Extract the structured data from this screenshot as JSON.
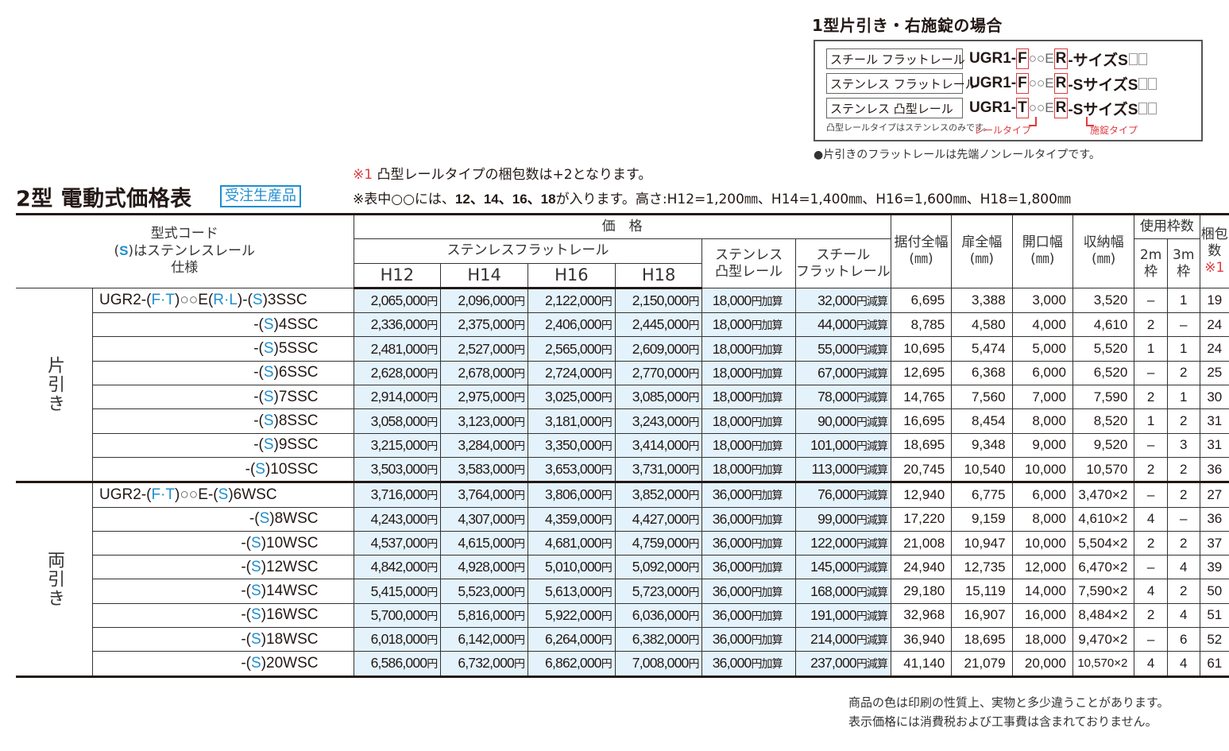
{
  "example": {
    "title": "1型片引き・右施錠の場合",
    "rows": [
      {
        "label": "スチール フラットレール",
        "prefix": "UGR1-",
        "rail": "F",
        "mid": "○○E",
        "lock": "R",
        "suffix": "-サイズS"
      },
      {
        "label": "ステンレス フラットレール",
        "prefix": "UGR1-",
        "rail": "F",
        "mid": "○○E",
        "lock": "R",
        "suffix": "-SサイズS"
      },
      {
        "label": "ステンレス 凸型レール",
        "prefix": "UGR1-",
        "rail": "T",
        "mid": "○○E",
        "lock": "R",
        "suffix": "-SサイズS"
      }
    ],
    "note": "凸型レールタイプはステンレスのみです。",
    "rail_type_label": "レールタイプ",
    "lock_type_label": "施錠タイプ",
    "bullet_note": "●片引きのフラットレールは先端ノンレールタイプです。"
  },
  "header": {
    "title": "2型 電動式価格表",
    "badge": "受注生産品",
    "note1_mark": "※1",
    "note1_text": " 凸型レールタイプの梱包数は+2となります。",
    "note2_pre": "※表中○○には、",
    "note2_bold": "12、14、16、18",
    "note2_post": "が入ります。高さ:H12=1,200㎜、H14=1,400㎜、H16=1,600㎜、H18=1,800㎜"
  },
  "table": {
    "head": {
      "model_l1": "型式コード",
      "model_s": "S",
      "model_l2": "はステンレスレール",
      "model_l3": "仕様",
      "price": "価　格",
      "stainless_flat": "ステンレスフラットレール",
      "heights": [
        "H12",
        "H14",
        "H16",
        "H18"
      ],
      "stainless_convex_l1": "ステンレス",
      "stainless_convex_l2": "凸型レール",
      "steel_flat_l1": "スチール",
      "steel_flat_l2": "フラットレール",
      "install_width_l1": "据付全幅",
      "door_width_l1": "扉全幅",
      "opening_width_l1": "開口幅",
      "storage_width_l1": "収納幅",
      "unit": "(㎜)",
      "frames": "使用枠数",
      "frame2_l1": "2m",
      "frame3_l1": "3m",
      "frame_l2": "枠",
      "pack_l1": "梱包",
      "pack_l2": "数",
      "pack_mark": "※1"
    },
    "yen": "円",
    "add": "円加算",
    "sub": "円減算",
    "groups": [
      {
        "name": "片引き",
        "rows": [
          {
            "model_prefix": "UGR2-(F·T)○○E(R·L)",
            "model": "3SSC",
            "h12": "2,065,000",
            "h14": "2,096,000",
            "h16": "2,122,000",
            "h18": "2,150,000",
            "convex": "18,000",
            "steel": "32,000",
            "install": "6,695",
            "door": "3,388",
            "opening": "3,000",
            "storage": "3,520",
            "f2": "–",
            "f3": "1",
            "pack": "19"
          },
          {
            "model": "4SSC",
            "h12": "2,336,000",
            "h14": "2,375,000",
            "h16": "2,406,000",
            "h18": "2,445,000",
            "convex": "18,000",
            "steel": "44,000",
            "install": "8,785",
            "door": "4,580",
            "opening": "4,000",
            "storage": "4,610",
            "f2": "2",
            "f3": "–",
            "pack": "24"
          },
          {
            "model": "5SSC",
            "h12": "2,481,000",
            "h14": "2,527,000",
            "h16": "2,565,000",
            "h18": "2,609,000",
            "convex": "18,000",
            "steel": "55,000",
            "install": "10,695",
            "door": "5,474",
            "opening": "5,000",
            "storage": "5,520",
            "f2": "1",
            "f3": "1",
            "pack": "24"
          },
          {
            "model": "6SSC",
            "h12": "2,628,000",
            "h14": "2,678,000",
            "h16": "2,724,000",
            "h18": "2,770,000",
            "convex": "18,000",
            "steel": "67,000",
            "install": "12,695",
            "door": "6,368",
            "opening": "6,000",
            "storage": "6,520",
            "f2": "–",
            "f3": "2",
            "pack": "25"
          },
          {
            "model": "7SSC",
            "h12": "2,914,000",
            "h14": "2,975,000",
            "h16": "3,025,000",
            "h18": "3,085,000",
            "convex": "18,000",
            "steel": "78,000",
            "install": "14,765",
            "door": "7,560",
            "opening": "7,000",
            "storage": "7,590",
            "f2": "2",
            "f3": "1",
            "pack": "30"
          },
          {
            "model": "8SSC",
            "h12": "3,058,000",
            "h14": "3,123,000",
            "h16": "3,181,000",
            "h18": "3,243,000",
            "convex": "18,000",
            "steel": "90,000",
            "install": "16,695",
            "door": "8,454",
            "opening": "8,000",
            "storage": "8,520",
            "f2": "1",
            "f3": "2",
            "pack": "31"
          },
          {
            "model": "9SSC",
            "h12": "3,215,000",
            "h14": "3,284,000",
            "h16": "3,350,000",
            "h18": "3,414,000",
            "convex": "18,000",
            "steel": "101,000",
            "install": "18,695",
            "door": "9,348",
            "opening": "9,000",
            "storage": "9,520",
            "f2": "–",
            "f3": "3",
            "pack": "31"
          },
          {
            "model": "10SSC",
            "h12": "3,503,000",
            "h14": "3,583,000",
            "h16": "3,653,000",
            "h18": "3,731,000",
            "convex": "18,000",
            "steel": "113,000",
            "install": "20,745",
            "door": "10,540",
            "opening": "10,000",
            "storage": "10,570",
            "f2": "2",
            "f3": "2",
            "pack": "36"
          }
        ]
      },
      {
        "name": "両引き",
        "rows": [
          {
            "model_prefix": "UGR2-(F·T)○○E",
            "model": "6WSC",
            "h12": "3,716,000",
            "h14": "3,764,000",
            "h16": "3,806,000",
            "h18": "3,852,000",
            "convex": "36,000",
            "steel": "76,000",
            "install": "12,940",
            "door": "6,775",
            "opening": "6,000",
            "storage": "3,470×2",
            "f2": "–",
            "f3": "2",
            "pack": "27"
          },
          {
            "model": "8WSC",
            "h12": "4,243,000",
            "h14": "4,307,000",
            "h16": "4,359,000",
            "h18": "4,427,000",
            "convex": "36,000",
            "steel": "99,000",
            "install": "17,220",
            "door": "9,159",
            "opening": "8,000",
            "storage": "4,610×2",
            "f2": "4",
            "f3": "–",
            "pack": "36"
          },
          {
            "model": "10WSC",
            "h12": "4,537,000",
            "h14": "4,615,000",
            "h16": "4,681,000",
            "h18": "4,759,000",
            "convex": "36,000",
            "steel": "122,000",
            "install": "21,008",
            "door": "10,947",
            "opening": "10,000",
            "storage": "5,504×2",
            "f2": "2",
            "f3": "2",
            "pack": "37"
          },
          {
            "model": "12WSC",
            "h12": "4,842,000",
            "h14": "4,928,000",
            "h16": "5,010,000",
            "h18": "5,092,000",
            "convex": "36,000",
            "steel": "145,000",
            "install": "24,940",
            "door": "12,735",
            "opening": "12,000",
            "storage": "6,470×2",
            "f2": "–",
            "f3": "4",
            "pack": "39"
          },
          {
            "model": "14WSC",
            "h12": "5,415,000",
            "h14": "5,523,000",
            "h16": "5,613,000",
            "h18": "5,723,000",
            "convex": "36,000",
            "steel": "168,000",
            "install": "29,180",
            "door": "15,119",
            "opening": "14,000",
            "storage": "7,590×2",
            "f2": "4",
            "f3": "2",
            "pack": "50"
          },
          {
            "model": "16WSC",
            "h12": "5,700,000",
            "h14": "5,816,000",
            "h16": "5,922,000",
            "h18": "6,036,000",
            "convex": "36,000",
            "steel": "191,000",
            "install": "32,968",
            "door": "16,907",
            "opening": "16,000",
            "storage": "8,484×2",
            "f2": "2",
            "f3": "4",
            "pack": "51"
          },
          {
            "model": "18WSC",
            "h12": "6,018,000",
            "h14": "6,142,000",
            "h16": "6,264,000",
            "h18": "6,382,000",
            "convex": "36,000",
            "steel": "214,000",
            "install": "36,940",
            "door": "18,695",
            "opening": "18,000",
            "storage": "9,470×2",
            "f2": "–",
            "f3": "6",
            "pack": "52"
          },
          {
            "model": "20WSC",
            "h12": "6,586,000",
            "h14": "6,732,000",
            "h16": "6,862,000",
            "h18": "7,008,000",
            "convex": "36,000",
            "steel": "237,000",
            "install": "41,140",
            "door": "21,079",
            "opening": "20,000",
            "storage": "10,570×2",
            "f2": "4",
            "f3": "4",
            "pack": "61"
          }
        ]
      }
    ]
  },
  "footer": {
    "line1": "商品の色は印刷の性質上、実物と多少違うことがあります。",
    "line2": "表示価格には消費税および工事費は含まれておりません。"
  },
  "colors": {
    "accent_blue": "#1f8ecf",
    "accent_red": "#e03a3e",
    "price_bg": "#e4f2fb"
  }
}
